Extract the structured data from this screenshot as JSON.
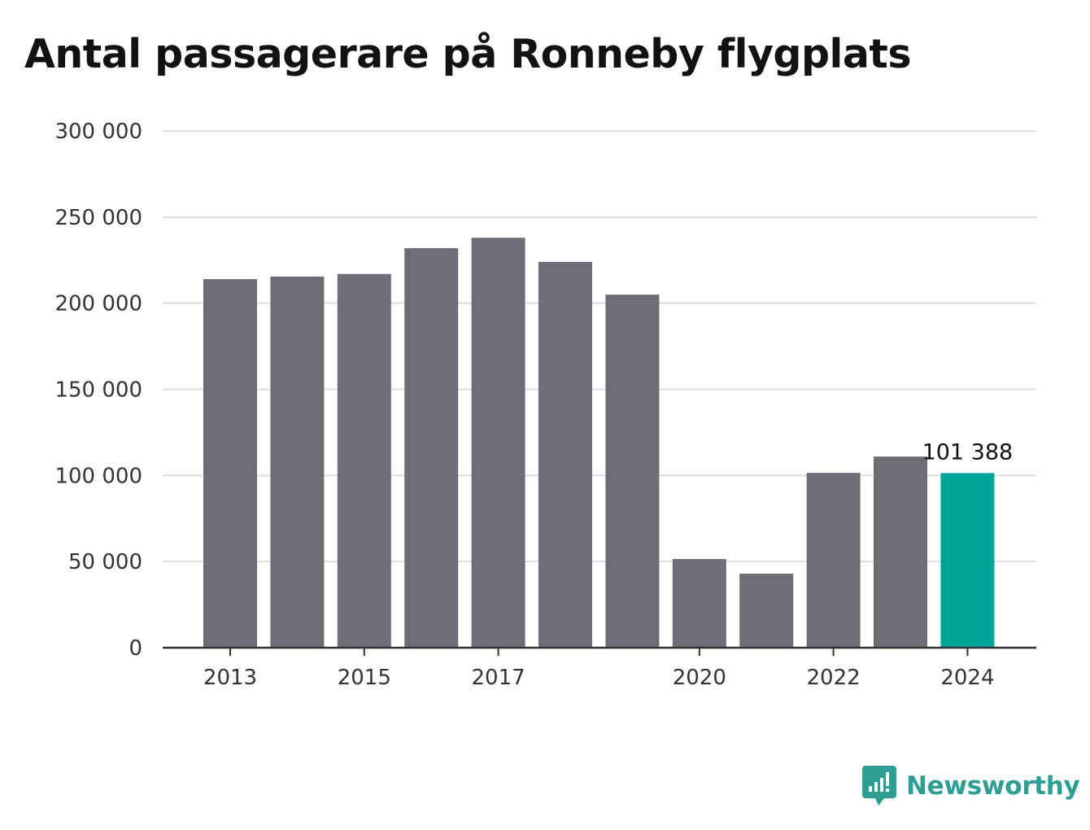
{
  "chart_data": {
    "type": "bar",
    "title": "Antal passagerare på Ronneby flygplats",
    "xlabel": "",
    "ylabel": "",
    "categories": [
      "2013",
      "2014",
      "2015",
      "2016",
      "2017",
      "2018",
      "2019",
      "2020",
      "2021",
      "2022",
      "2023",
      "2024"
    ],
    "values": [
      214000,
      215500,
      217000,
      232000,
      238000,
      224000,
      205000,
      51500,
      43000,
      101500,
      111000,
      101388
    ],
    "x_tick_labels": [
      "2013",
      "2015",
      "2017",
      "2020",
      "2022",
      "2024"
    ],
    "y_ticks": [
      0,
      50000,
      100000,
      150000,
      200000,
      250000,
      300000
    ],
    "y_tick_labels": [
      "0",
      "50 000",
      "100 000",
      "150 000",
      "200 000",
      "250 000",
      "300 000"
    ],
    "ylim": [
      0,
      300000
    ],
    "grid": true,
    "annotation": {
      "category": "2024",
      "text": "101 388"
    },
    "colors": {
      "bar": "#6e6d75",
      "highlight": "#00a59a",
      "grid": "#dedede",
      "axis": "#333333"
    },
    "highlight_category": "2024"
  },
  "brand": {
    "name": "Newsworthy",
    "icon": "newsworthy-logo-icon",
    "color": "#2f9e92"
  }
}
